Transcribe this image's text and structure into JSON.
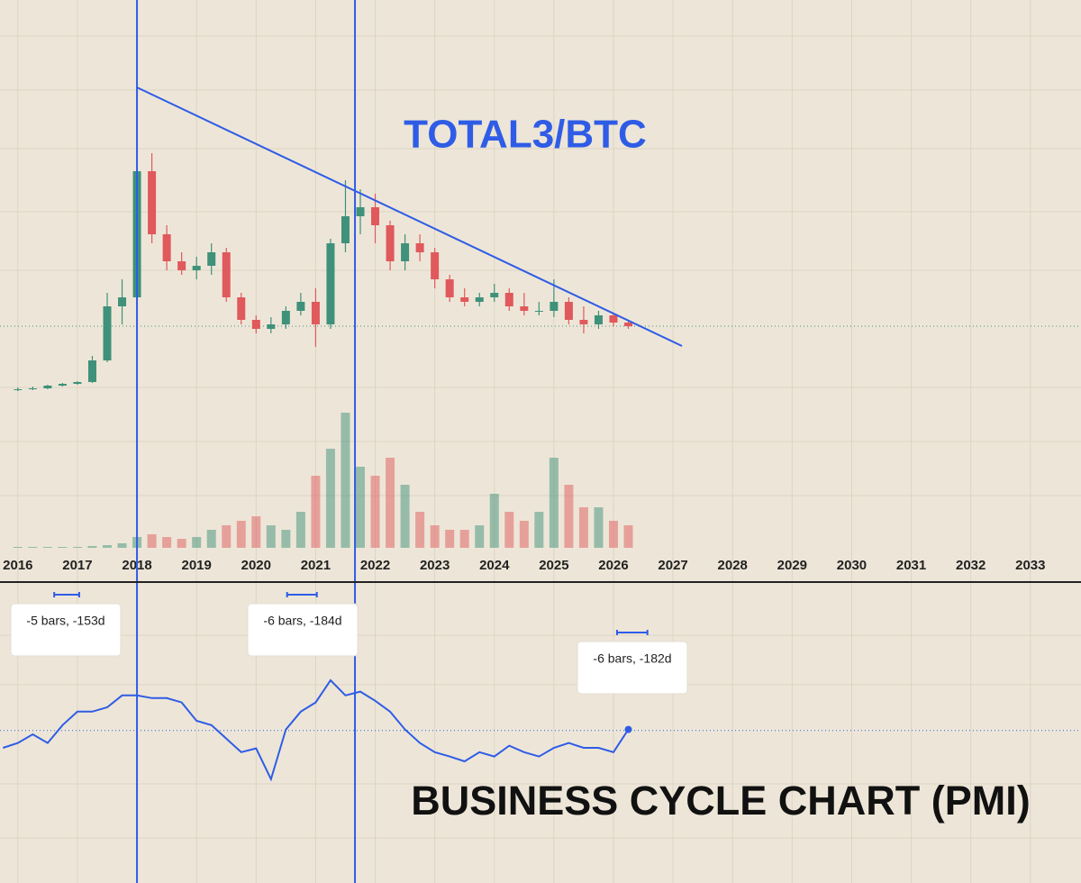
{
  "chart_data": [
    {
      "type": "candlestick",
      "title": "TOTAL3/BTC",
      "xlim": [
        2015.7,
        2033.85
      ],
      "xticks": [
        2016,
        2017,
        2018,
        2019,
        2020,
        2021,
        2022,
        2023,
        2024,
        2025,
        2026,
        2027,
        2028,
        2029,
        2030,
        2031,
        2032,
        2033
      ],
      "ylim": [
        0,
        350
      ],
      "up_color": "#3f917a",
      "down_color": "#e0595c",
      "x": [
        2016.0,
        2016.25,
        2016.5,
        2016.75,
        2017.0,
        2017.25,
        2017.5,
        2017.75,
        2018.0,
        2018.25,
        2018.5,
        2018.75,
        2019.0,
        2019.25,
        2019.5,
        2019.75,
        2020.0,
        2020.25,
        2020.5,
        2020.75,
        2021.0,
        2021.25,
        2021.5,
        2021.75,
        2022.0,
        2022.25,
        2022.5,
        2022.75,
        2023.0,
        2023.25,
        2023.5,
        2023.75,
        2024.0,
        2024.25,
        2024.5,
        2024.75,
        2025.0,
        2025.25,
        2025.5,
        2025.75,
        2026.0,
        2026.25
      ],
      "open": [
        7,
        8,
        9,
        12,
        14,
        16,
        40,
        100,
        110,
        250,
        180,
        150,
        140,
        145,
        160,
        110,
        85,
        75,
        80,
        95,
        105,
        80,
        170,
        200,
        210,
        190,
        150,
        170,
        160,
        130,
        110,
        105,
        110,
        115,
        100,
        95,
        95,
        105,
        85,
        80,
        90,
        82
      ],
      "high": [
        10,
        11,
        13,
        15,
        17,
        45,
        115,
        130,
        345,
        270,
        190,
        160,
        155,
        170,
        165,
        115,
        90,
        88,
        100,
        115,
        120,
        175,
        240,
        230,
        225,
        195,
        180,
        180,
        165,
        135,
        120,
        115,
        125,
        120,
        115,
        105,
        130,
        110,
        100,
        95,
        92,
        85
      ],
      "low": [
        6,
        7,
        8,
        11,
        13,
        15,
        38,
        80,
        100,
        170,
        140,
        135,
        130,
        135,
        105,
        80,
        70,
        70,
        75,
        90,
        55,
        75,
        160,
        180,
        170,
        140,
        140,
        150,
        120,
        105,
        100,
        100,
        105,
        95,
        90,
        90,
        88,
        80,
        70,
        75,
        78,
        75
      ],
      "close": [
        8,
        9,
        12,
        14,
        16,
        40,
        100,
        110,
        250,
        180,
        150,
        140,
        145,
        160,
        110,
        85,
        75,
        80,
        95,
        105,
        80,
        170,
        200,
        210,
        190,
        150,
        170,
        160,
        130,
        110,
        105,
        110,
        115,
        100,
        95,
        95,
        105,
        85,
        80,
        90,
        82,
        78
      ],
      "volume": [
        1,
        1,
        1,
        1,
        1,
        2,
        3,
        5,
        12,
        15,
        12,
        10,
        12,
        20,
        25,
        30,
        35,
        25,
        20,
        40,
        80,
        110,
        150,
        90,
        80,
        100,
        70,
        40,
        25,
        20,
        20,
        25,
        60,
        40,
        30,
        40,
        100,
        70,
        45,
        45,
        30,
        25
      ],
      "volume_ylim": [
        0,
        160
      ],
      "trendline": {
        "x": [
          2018.0,
          2027.15
        ],
        "values": [
          343,
          56
        ],
        "color": "#2f5ce6"
      },
      "last_price": 78,
      "vertical_lines": [
        2018.0,
        2021.66
      ]
    },
    {
      "type": "line",
      "title": "BUSINESS CYCLE CHART (PMI)",
      "color": "#2f5ce6",
      "xlim": [
        2015.7,
        2033.85
      ],
      "ylim": [
        21.8,
        76.8
      ],
      "reference_line": 50,
      "x": [
        2015.75,
        2016.0,
        2016.25,
        2016.5,
        2016.75,
        2017.0,
        2017.25,
        2017.5,
        2017.75,
        2018.0,
        2018.25,
        2018.5,
        2018.75,
        2019.0,
        2019.25,
        2019.5,
        2019.75,
        2020.0,
        2020.25,
        2020.5,
        2020.75,
        2021.0,
        2021.25,
        2021.5,
        2021.75,
        2022.0,
        2022.25,
        2022.5,
        2022.75,
        2023.0,
        2023.25,
        2023.5,
        2023.75,
        2024.0,
        2024.25,
        2024.5,
        2024.75,
        2025.0,
        2025.25,
        2025.5,
        2025.75,
        2026.0,
        2026.25
      ],
      "values": [
        46.8,
        47.7,
        49.3,
        47.7,
        51,
        53.5,
        53.5,
        54.3,
        56.5,
        56.5,
        56,
        56,
        55.2,
        51.8,
        51,
        48.5,
        46,
        46.7,
        41,
        50.2,
        53.5,
        55.2,
        59.3,
        56.5,
        57.2,
        55.5,
        53.5,
        50.2,
        47.7,
        46,
        45.2,
        44.3,
        46,
        45.2,
        47.2,
        46,
        45.2,
        46.8,
        47.7,
        46.8,
        46.8,
        46,
        50.2
      ],
      "measurements": [
        {
          "label": "-5 bars, -153d",
          "x": [
            2016.61,
            2017.03
          ]
        },
        {
          "label": "-6 bars, -184d",
          "x": [
            2020.52,
            2021.02
          ]
        },
        {
          "label": "-6 bars, -182d",
          "x": [
            2026.06,
            2026.57
          ]
        }
      ]
    }
  ]
}
